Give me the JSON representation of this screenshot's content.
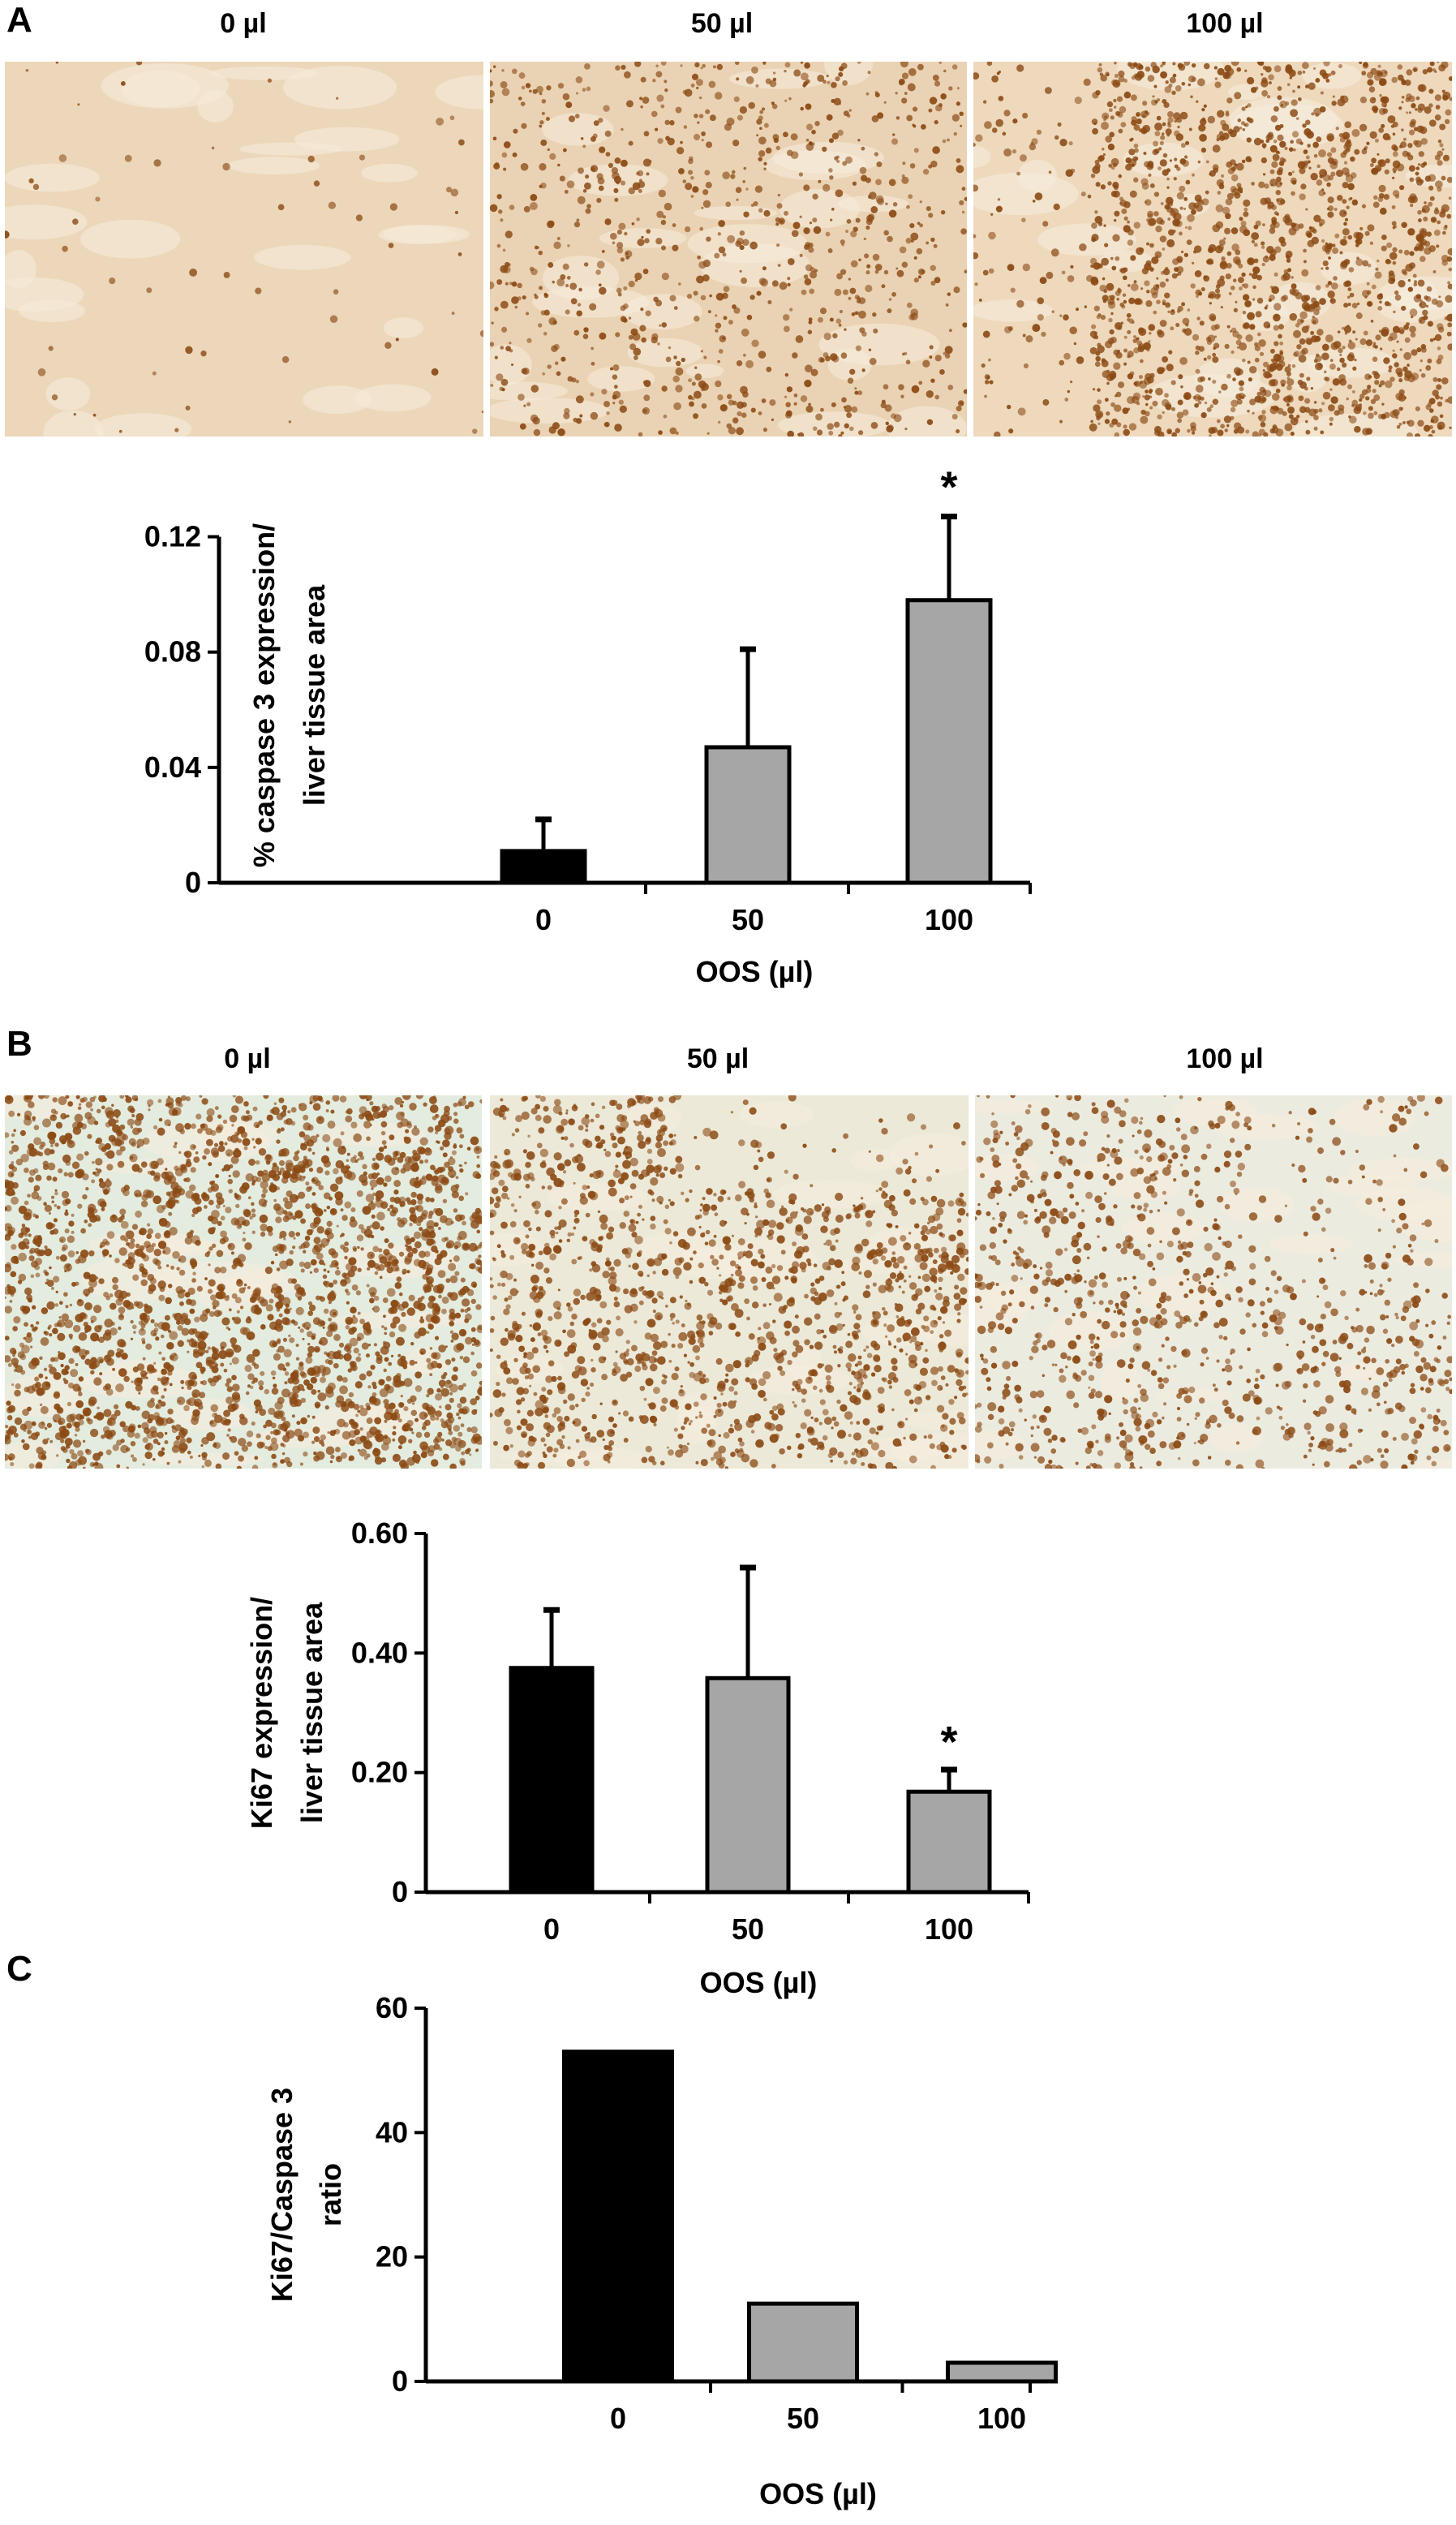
{
  "panels": {
    "A": {
      "letter": "A",
      "micrographs": [
        {
          "label": "0 µl",
          "stain": "light",
          "tint": "#ecd7bb"
        },
        {
          "label": "50 µl",
          "stain": "medium",
          "tint": "#ead3b4"
        },
        {
          "label": "100 µl",
          "stain": "heavy",
          "tint": "#eed9bd"
        }
      ]
    },
    "B": {
      "letter": "B",
      "micrographs": [
        {
          "label": "0 µl",
          "stain": "dense-nuclei",
          "tint": "#e4ecdf"
        },
        {
          "label": "50 µl",
          "stain": "medium-nuclei",
          "tint": "#ece9d9"
        },
        {
          "label": "100 µl",
          "stain": "sparse-nuclei",
          "tint": "#ecebe0"
        }
      ]
    },
    "C": {
      "letter": "C"
    }
  },
  "colors": {
    "bar_control": "#000000",
    "bar_treated": "#a6a6a6",
    "stain_dot": "#8b4a14"
  },
  "chart_data": [
    {
      "id": "A",
      "type": "bar",
      "categories": [
        "0",
        "50",
        "100"
      ],
      "values": [
        0.011,
        0.047,
        0.098
      ],
      "errors": [
        0.011,
        0.034,
        0.029
      ],
      "significant": [
        false,
        false,
        true
      ],
      "significance_marker": "*",
      "ylabel_lines": [
        "% caspase 3 expression/",
        "liver tissue area"
      ],
      "xlabel": "OOS   (µl)",
      "ylim": [
        0,
        0.13
      ],
      "yticks": [
        0,
        0.04,
        0.08,
        0.12
      ],
      "ytick_labels": [
        "0",
        "0.04",
        "0.08",
        "0.12"
      ]
    },
    {
      "id": "B",
      "type": "bar",
      "categories": [
        "0",
        "50",
        "100"
      ],
      "values": [
        0.375,
        0.358,
        0.168
      ],
      "errors": [
        0.097,
        0.185,
        0.037
      ],
      "significant": [
        false,
        false,
        true
      ],
      "significance_marker": "*",
      "ylabel_lines": [
        "Ki67 expression/",
        "liver tissue area"
      ],
      "xlabel": "OOS   (µl)",
      "ylim": [
        0,
        0.6
      ],
      "yticks": [
        0,
        0.2,
        0.4,
        0.6
      ],
      "ytick_labels": [
        "0",
        "0.20",
        "0.40",
        "0.60"
      ]
    },
    {
      "id": "C",
      "type": "bar",
      "categories": [
        "0",
        "50",
        "100"
      ],
      "values": [
        53,
        12.5,
        3
      ],
      "ylabel_lines": [
        "Ki67/Caspase 3",
        "ratio"
      ],
      "xlabel": "OOS   (µl)",
      "ylim": [
        0,
        60
      ],
      "yticks": [
        0,
        20,
        40,
        60
      ],
      "ytick_labels": [
        "0",
        "20",
        "40",
        "60"
      ]
    }
  ]
}
